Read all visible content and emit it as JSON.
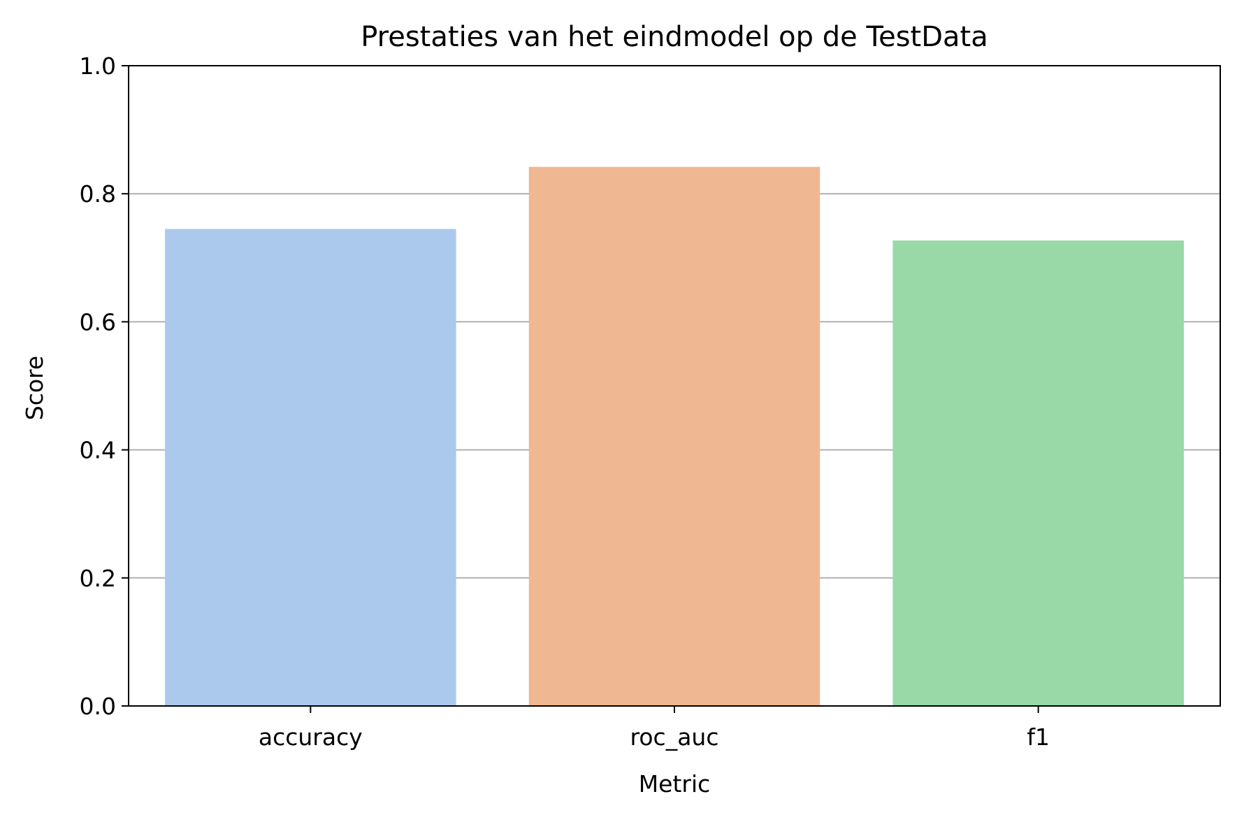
{
  "chart_data": {
    "type": "bar",
    "title": "Prestaties van het eindmodel op de TestData",
    "xlabel": "Metric",
    "ylabel": "Score",
    "categories": [
      "accuracy",
      "roc_auc",
      "f1"
    ],
    "values": [
      0.745,
      0.842,
      0.727
    ],
    "colors": [
      "#abc9ec",
      "#f0b793",
      "#98d9a7"
    ],
    "ylim": [
      0,
      1.0
    ],
    "yticks": [
      0.0,
      0.2,
      0.4,
      0.6,
      0.8,
      1.0
    ],
    "ytick_labels": [
      "0.0",
      "0.2",
      "0.4",
      "0.6",
      "0.8",
      "1.0"
    ],
    "grid": "horizontal",
    "grid_color": "#b0b0b0"
  }
}
